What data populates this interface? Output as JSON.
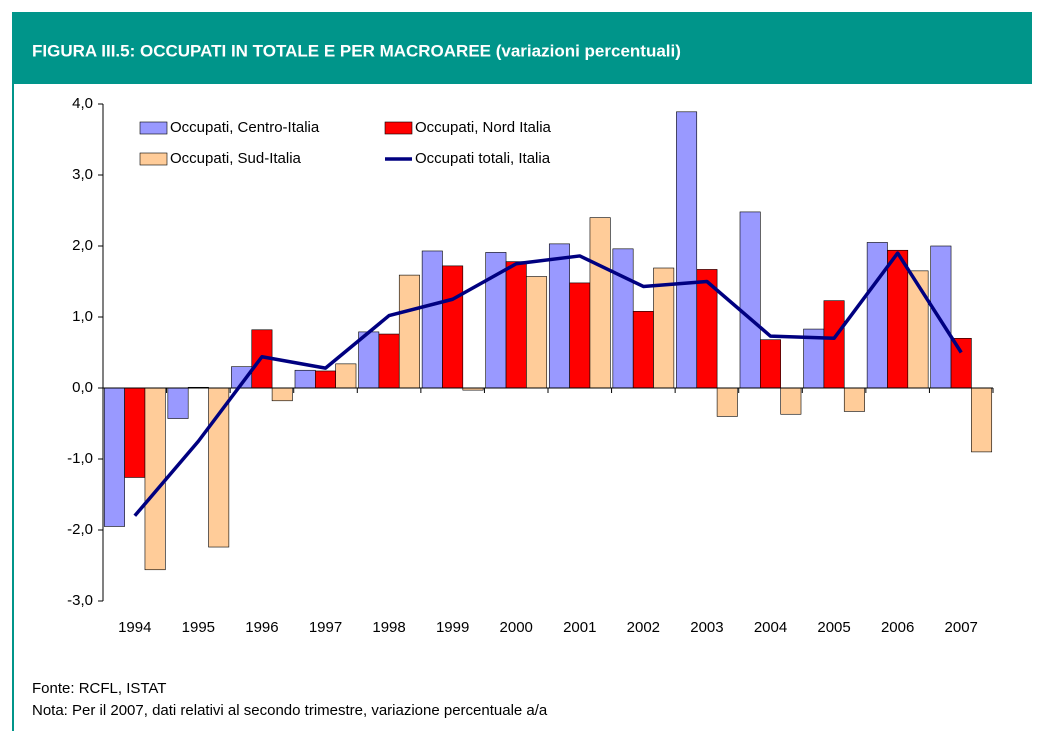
{
  "chart_data": {
    "type": "bar",
    "title": "FIGURA III.5: OCCUPATI IN TOTALE E PER MACROAREE (variazioni percentuali)",
    "categories": [
      "1994",
      "1995",
      "1996",
      "1997",
      "1998",
      "1999",
      "2000",
      "2001",
      "2002",
      "2003",
      "2004",
      "2005",
      "2006",
      "2007"
    ],
    "series": [
      {
        "name": "Occupati, Centro-Italia",
        "color": "#9999ff",
        "type": "bar",
        "values": [
          -1.95,
          -0.43,
          0.3,
          0.25,
          0.79,
          1.93,
          1.91,
          2.03,
          1.96,
          3.89,
          2.48,
          0.83,
          2.05,
          2.0
        ]
      },
      {
        "name": "Occupati, Nord Italia",
        "color": "#ff0000",
        "type": "bar",
        "values": [
          -1.26,
          0.01,
          0.82,
          0.24,
          0.76,
          1.72,
          1.78,
          1.48,
          1.08,
          1.67,
          0.68,
          1.23,
          1.94,
          0.7
        ]
      },
      {
        "name": "Occupati, Sud-Italia",
        "color": "#ffcc99",
        "type": "bar",
        "values": [
          -2.56,
          -2.24,
          -0.18,
          0.34,
          1.59,
          -0.03,
          1.57,
          2.4,
          1.69,
          -0.4,
          -0.37,
          -0.33,
          1.65,
          -0.9
        ]
      },
      {
        "name": "Occupati totali, Italia",
        "color": "#000080",
        "type": "line",
        "values": [
          -1.8,
          -0.75,
          0.44,
          0.28,
          1.02,
          1.25,
          1.75,
          1.86,
          1.43,
          1.5,
          0.73,
          0.7,
          1.9,
          0.5
        ]
      }
    ],
    "ylim": [
      -3,
      4
    ],
    "yticks": [
      {
        "value": -3,
        "label": "-3,0"
      },
      {
        "value": -2,
        "label": "-2,0"
      },
      {
        "value": -1,
        "label": "-1,0"
      },
      {
        "value": 0,
        "label": "0,0"
      },
      {
        "value": 1,
        "label": "1,0"
      },
      {
        "value": 2,
        "label": "2,0"
      },
      {
        "value": 3,
        "label": "3,0"
      },
      {
        "value": 4,
        "label": "4,0"
      }
    ],
    "grid": false,
    "source": "Fonte: RCFL, ISTAT",
    "note": "Nota: Per il 2007, dati relativi al secondo trimestre, variazione percentuale a/a"
  }
}
